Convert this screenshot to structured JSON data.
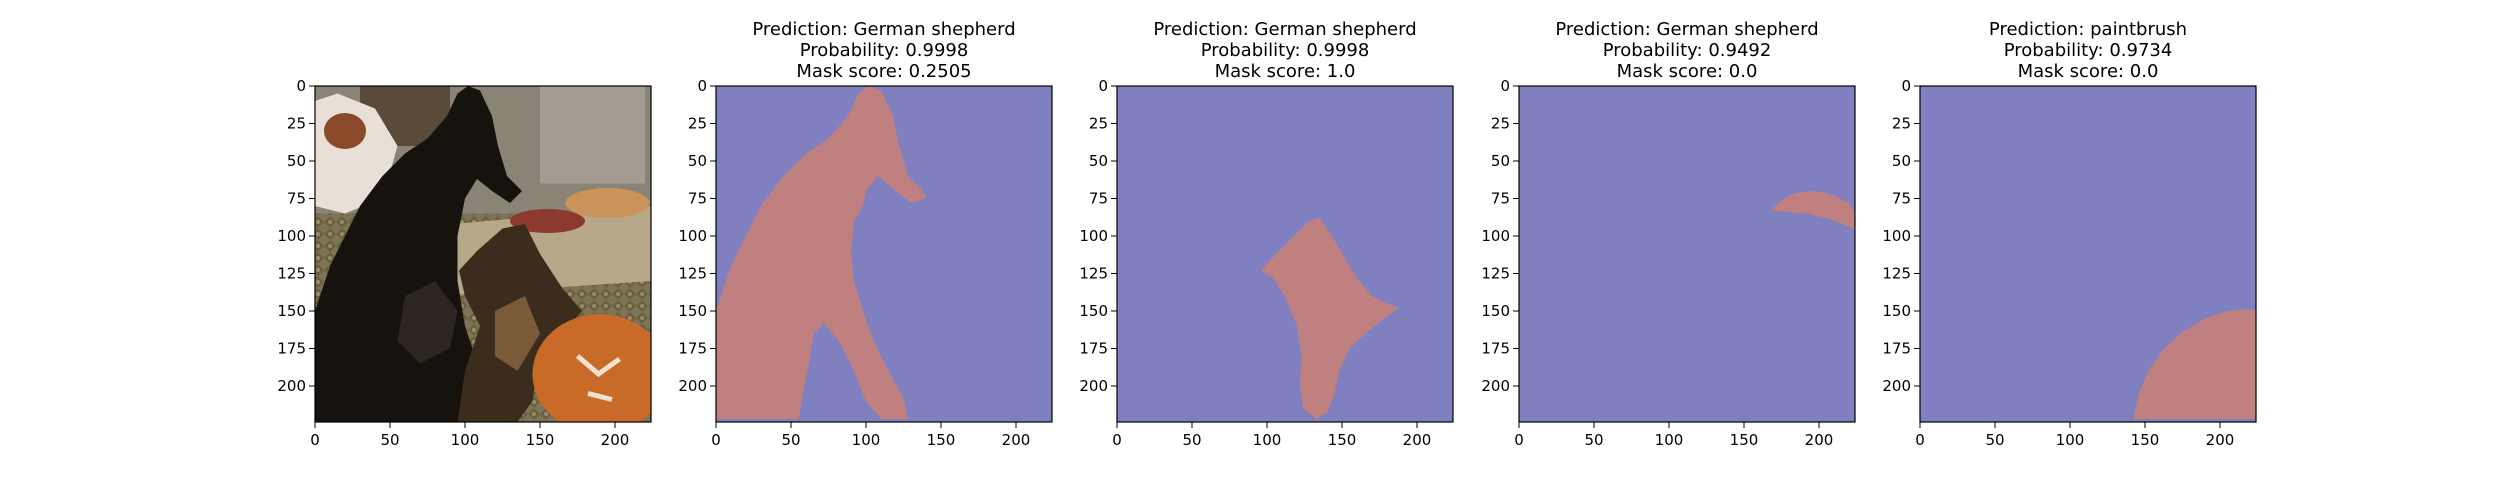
{
  "colors": {
    "background": "#8080c0",
    "mask": "#c08080"
  },
  "chart_data": [
    {
      "type": "image",
      "image": "photo",
      "title_lines": [],
      "x_ticks": [
        0,
        50,
        100,
        150,
        200
      ],
      "y_ticks": [
        0,
        25,
        50,
        75,
        100,
        125,
        150,
        175,
        200
      ],
      "xlim": [
        0,
        224
      ],
      "ylim": [
        224,
        0
      ]
    },
    {
      "type": "heatmap",
      "image": "mask-1",
      "title_lines": [
        "Prediction: German shepherd",
        "Probability: 0.9998",
        "Mask score: 0.2505"
      ],
      "prediction": "German shepherd",
      "probability": 0.9998,
      "mask_score": 0.2505,
      "x_ticks": [
        0,
        50,
        100,
        150,
        200
      ],
      "y_ticks": [
        0,
        25,
        50,
        75,
        100,
        125,
        150,
        175,
        200
      ],
      "xlim": [
        0,
        224
      ],
      "ylim": [
        224,
        0
      ],
      "mask_polygon": [
        [
          0,
          150
        ],
        [
          10,
          120
        ],
        [
          30,
          80
        ],
        [
          45,
          60
        ],
        [
          60,
          45
        ],
        [
          75,
          35
        ],
        [
          88,
          20
        ],
        [
          95,
          5
        ],
        [
          102,
          0
        ],
        [
          110,
          3
        ],
        [
          118,
          20
        ],
        [
          122,
          40
        ],
        [
          128,
          60
        ],
        [
          138,
          70
        ],
        [
          140,
          75
        ],
        [
          130,
          78
        ],
        [
          120,
          70
        ],
        [
          108,
          60
        ],
        [
          100,
          70
        ],
        [
          98,
          80
        ],
        [
          92,
          90
        ],
        [
          90,
          110
        ],
        [
          92,
          130
        ],
        [
          98,
          150
        ],
        [
          105,
          170
        ],
        [
          115,
          190
        ],
        [
          125,
          208
        ],
        [
          128,
          222
        ],
        [
          110,
          222
        ],
        [
          100,
          210
        ],
        [
          92,
          190
        ],
        [
          82,
          170
        ],
        [
          72,
          158
        ],
        [
          65,
          165
        ],
        [
          62,
          185
        ],
        [
          58,
          205
        ],
        [
          55,
          222
        ],
        [
          30,
          222
        ],
        [
          10,
          222
        ],
        [
          0,
          222
        ]
      ]
    },
    {
      "type": "heatmap",
      "image": "mask-2",
      "title_lines": [
        "Prediction: German shepherd",
        "Probability: 0.9998",
        "Mask score: 1.0"
      ],
      "prediction": "German shepherd",
      "probability": 0.9998,
      "mask_score": 1.0,
      "x_ticks": [
        0,
        50,
        100,
        150,
        200
      ],
      "y_ticks": [
        0,
        25,
        50,
        75,
        100,
        125,
        150,
        175,
        200
      ],
      "xlim": [
        0,
        224
      ],
      "ylim": [
        224,
        0
      ],
      "mask_polygon": [
        [
          96,
          123
        ],
        [
          108,
          110
        ],
        [
          118,
          100
        ],
        [
          128,
          90
        ],
        [
          135,
          88
        ],
        [
          140,
          95
        ],
        [
          145,
          103
        ],
        [
          152,
          115
        ],
        [
          160,
          128
        ],
        [
          170,
          140
        ],
        [
          180,
          145
        ],
        [
          188,
          148
        ],
        [
          178,
          155
        ],
        [
          168,
          163
        ],
        [
          155,
          175
        ],
        [
          148,
          190
        ],
        [
          145,
          205
        ],
        [
          140,
          218
        ],
        [
          133,
          222
        ],
        [
          124,
          215
        ],
        [
          122,
          200
        ],
        [
          123,
          180
        ],
        [
          120,
          160
        ],
        [
          112,
          140
        ],
        [
          104,
          128
        ]
      ]
    },
    {
      "type": "heatmap",
      "image": "mask-3",
      "title_lines": [
        "Prediction: German shepherd",
        "Probability: 0.9492",
        "Mask score: 0.0"
      ],
      "prediction": "German shepherd",
      "probability": 0.9492,
      "mask_score": 0.0,
      "x_ticks": [
        0,
        50,
        100,
        150,
        200
      ],
      "y_ticks": [
        0,
        25,
        50,
        75,
        100,
        125,
        150,
        175,
        200
      ],
      "xlim": [
        0,
        224
      ],
      "ylim": [
        224,
        0
      ],
      "mask_polygon": [
        [
          168,
          83
        ],
        [
          175,
          76
        ],
        [
          185,
          71
        ],
        [
          198,
          70
        ],
        [
          210,
          73
        ],
        [
          220,
          78
        ],
        [
          224,
          85
        ],
        [
          224,
          96
        ],
        [
          216,
          92
        ],
        [
          205,
          88
        ],
        [
          192,
          85
        ],
        [
          180,
          84
        ]
      ]
    },
    {
      "type": "heatmap",
      "image": "mask-4",
      "title_lines": [
        "Prediction: paintbrush",
        "Probability: 0.9734",
        "Mask score: 0.0"
      ],
      "prediction": "paintbrush",
      "probability": 0.9734,
      "mask_score": 0.0,
      "x_ticks": [
        0,
        50,
        100,
        150,
        200
      ],
      "y_ticks": [
        0,
        25,
        50,
        75,
        100,
        125,
        150,
        175,
        200
      ],
      "xlim": [
        0,
        224
      ],
      "ylim": [
        224,
        0
      ],
      "mask_polygon": [
        [
          142,
          222
        ],
        [
          146,
          205
        ],
        [
          152,
          190
        ],
        [
          162,
          176
        ],
        [
          175,
          164
        ],
        [
          190,
          155
        ],
        [
          205,
          150
        ],
        [
          215,
          149
        ],
        [
          224,
          149
        ],
        [
          224,
          222
        ]
      ]
    }
  ]
}
